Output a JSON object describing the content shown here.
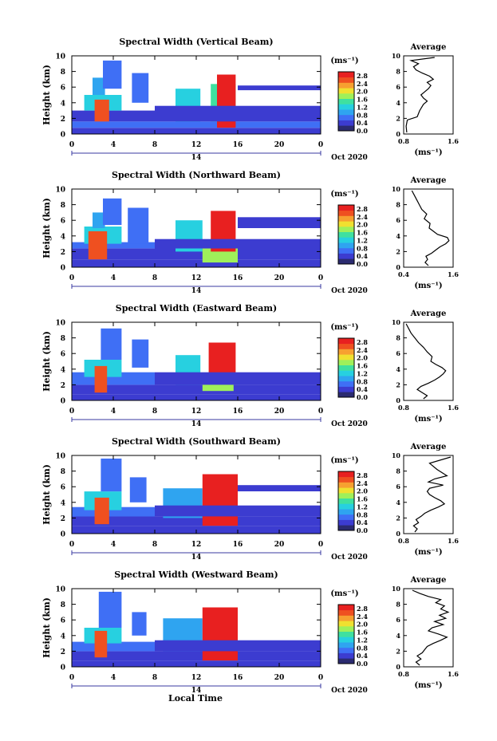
{
  "figure": {
    "xlabel": "Local Time",
    "colorbar_unit": "(ms⁻¹)",
    "colorbar_ticks": [
      "2.8",
      "2.4",
      "2.0",
      "1.6",
      "1.2",
      "0.8",
      "0.4",
      "0.0"
    ],
    "date_label": "Oct 2020",
    "day_label": "14",
    "profile_title": "Average",
    "profile_unit": "(ms⁻¹)",
    "ylabel": "Height (km)",
    "colors": {
      "scale": [
        "#2b2b70",
        "#3c3cd0",
        "#3f6ff5",
        "#2fa4f0",
        "#27d0e0",
        "#3fe0a0",
        "#9ff05a",
        "#f0e030",
        "#f7a030",
        "#ef5020",
        "#e82020"
      ],
      "line": "#000000",
      "background": "#ffffff"
    }
  },
  "chart_data": [
    {
      "type": "heatmap",
      "title": "Spectral Width (Vertical Beam)",
      "x_ticks": [
        "0",
        "4",
        "8",
        "12",
        "16",
        "20",
        "0"
      ],
      "y_ticks": [
        "0",
        "2",
        "4",
        "6",
        "8",
        "10"
      ],
      "xlim": [
        0,
        24
      ],
      "ylim": [
        0,
        10
      ],
      "clim": [
        0.0,
        3.0
      ],
      "profile": {
        "xlim": [
          0.8,
          1.6
        ],
        "x_ticks": [
          "0.8",
          "1.6"
        ],
        "y_ticks": [
          "0",
          "2",
          "4",
          "6",
          "8",
          "10"
        ],
        "height": [
          0.2,
          1.0,
          1.8,
          2.2,
          3.0,
          3.8,
          4.2,
          4.6,
          5.0,
          5.4,
          5.8,
          6.2,
          6.6,
          7.0,
          7.4,
          7.8,
          8.2,
          8.6,
          9.0,
          9.4,
          9.8
        ],
        "width": [
          0.85,
          0.84,
          0.86,
          1.02,
          1.06,
          1.12,
          1.18,
          1.12,
          1.08,
          1.14,
          1.2,
          1.24,
          1.18,
          1.28,
          1.22,
          1.1,
          1.0,
          0.96,
          1.04,
          0.92,
          1.3
        ]
      },
      "cells": [
        {
          "t": [
            0,
            24
          ],
          "h": [
            0.0,
            0.8
          ],
          "v": 0.3
        },
        {
          "t": [
            0,
            24
          ],
          "h": [
            0.8,
            1.6
          ],
          "v": 0.6
        },
        {
          "t": [
            0,
            8
          ],
          "h": [
            1.6,
            3.0
          ],
          "v": 0.5
        },
        {
          "t": [
            1.2,
            4.8
          ],
          "h": [
            3.0,
            5.0
          ],
          "v": 1.2
        },
        {
          "t": [
            2.0,
            3.2
          ],
          "h": [
            5.0,
            7.2
          ],
          "v": 1.0
        },
        {
          "t": [
            3.0,
            4.8
          ],
          "h": [
            5.8,
            9.4
          ],
          "v": 0.8
        },
        {
          "t": [
            2.2,
            3.6
          ],
          "h": [
            1.6,
            4.4
          ],
          "v": 2.7
        },
        {
          "t": [
            5.8,
            7.4
          ],
          "h": [
            4.0,
            7.8
          ],
          "v": 0.8
        },
        {
          "t": [
            10.0,
            12.4
          ],
          "h": [
            1.6,
            5.8
          ],
          "v": 1.1
        },
        {
          "t": [
            13.4,
            15.8
          ],
          "h": [
            1.6,
            6.4
          ],
          "v": 1.6
        },
        {
          "t": [
            14.0,
            15.8
          ],
          "h": [
            0.8,
            7.6
          ],
          "v": 2.9
        },
        {
          "t": [
            8.0,
            24.0
          ],
          "h": [
            1.6,
            3.6
          ],
          "v": 0.4
        },
        {
          "t": [
            16.0,
            24.0
          ],
          "h": [
            5.6,
            6.2
          ],
          "v": 0.4
        }
      ]
    },
    {
      "type": "heatmap",
      "title": "Spectral Width (Northward Beam)",
      "x_ticks": [
        "0",
        "4",
        "8",
        "12",
        "16",
        "20",
        "0"
      ],
      "y_ticks": [
        "0",
        "2",
        "4",
        "6",
        "8",
        "10"
      ],
      "xlim": [
        0,
        24
      ],
      "ylim": [
        0,
        10
      ],
      "clim": [
        0.0,
        3.0
      ],
      "profile": {
        "xlim": [
          0.4,
          1.6
        ],
        "x_ticks": [
          "0.4",
          "1.6"
        ],
        "y_ticks": [
          "0",
          "2",
          "4",
          "6",
          "8",
          "10"
        ],
        "height": [
          0.2,
          0.6,
          1.0,
          1.4,
          1.8,
          2.2,
          2.6,
          3.0,
          3.4,
          3.8,
          4.2,
          4.6,
          5.0,
          5.6,
          6.2,
          6.8,
          7.4,
          8.0,
          8.6,
          9.2,
          9.8
        ],
        "width": [
          1.0,
          0.92,
          0.98,
          0.94,
          1.08,
          1.18,
          1.28,
          1.42,
          1.5,
          1.46,
          1.22,
          1.12,
          1.02,
          1.04,
          0.9,
          0.96,
          0.84,
          0.78,
          0.72,
          0.66,
          0.6
        ]
      },
      "cells": [
        {
          "t": [
            0,
            24
          ],
          "h": [
            0.0,
            1.0
          ],
          "v": 0.5
        },
        {
          "t": [
            0,
            24
          ],
          "h": [
            1.0,
            2.4
          ],
          "v": 0.4
        },
        {
          "t": [
            0,
            8
          ],
          "h": [
            2.4,
            3.2
          ],
          "v": 0.6
        },
        {
          "t": [
            1.2,
            4.8
          ],
          "h": [
            3.0,
            5.2
          ],
          "v": 1.3
        },
        {
          "t": [
            2.0,
            3.2
          ],
          "h": [
            5.0,
            7.0
          ],
          "v": 1.0
        },
        {
          "t": [
            3.0,
            4.8
          ],
          "h": [
            5.4,
            8.8
          ],
          "v": 0.8
        },
        {
          "t": [
            1.6,
            3.4
          ],
          "h": [
            1.0,
            4.6
          ],
          "v": 2.6
        },
        {
          "t": [
            5.4,
            7.4
          ],
          "h": [
            3.0,
            7.6
          ],
          "v": 0.8
        },
        {
          "t": [
            10.0,
            12.6
          ],
          "h": [
            2.0,
            6.0
          ],
          "v": 1.1
        },
        {
          "t": [
            12.6,
            16.0
          ],
          "h": [
            0.6,
            3.2
          ],
          "v": 1.7
        },
        {
          "t": [
            13.4,
            15.8
          ],
          "h": [
            2.0,
            7.2
          ],
          "v": 2.9
        },
        {
          "t": [
            8.0,
            24.0
          ],
          "h": [
            2.4,
            3.6
          ],
          "v": 0.3
        },
        {
          "t": [
            16.0,
            24.0
          ],
          "h": [
            5.0,
            6.4
          ],
          "v": 0.4
        }
      ]
    },
    {
      "type": "heatmap",
      "title": "Spectral Width (Eastward Beam)",
      "x_ticks": [
        "0",
        "4",
        "8",
        "12",
        "16",
        "20",
        "0"
      ],
      "y_ticks": [
        "0",
        "2",
        "4",
        "6",
        "8",
        "10"
      ],
      "xlim": [
        0,
        24
      ],
      "ylim": [
        0,
        10
      ],
      "clim": [
        0.0,
        3.0
      ],
      "profile": {
        "xlim": [
          0.8,
          1.6
        ],
        "x_ticks": [
          "0.8",
          "1.6"
        ],
        "y_ticks": [
          "0",
          "2",
          "4",
          "6",
          "8",
          "10"
        ],
        "height": [
          0.2,
          0.6,
          1.0,
          1.4,
          1.8,
          2.2,
          2.6,
          3.0,
          3.4,
          3.8,
          4.2,
          4.6,
          5.0,
          5.6,
          6.2,
          6.8,
          7.4,
          8.0,
          8.6,
          9.2,
          9.8
        ],
        "width": [
          1.12,
          1.18,
          1.1,
          1.02,
          1.08,
          1.2,
          1.3,
          1.38,
          1.44,
          1.48,
          1.42,
          1.32,
          1.24,
          1.26,
          1.18,
          1.12,
          1.04,
          0.98,
          0.92,
          0.88,
          0.84
        ]
      },
      "cells": [
        {
          "t": [
            0,
            24
          ],
          "h": [
            0.0,
            0.8
          ],
          "v": 0.4
        },
        {
          "t": [
            0,
            24
          ],
          "h": [
            0.8,
            2.0
          ],
          "v": 0.5
        },
        {
          "t": [
            0,
            8
          ],
          "h": [
            2.0,
            3.6
          ],
          "v": 0.6
        },
        {
          "t": [
            1.2,
            4.8
          ],
          "h": [
            3.0,
            5.2
          ],
          "v": 1.2
        },
        {
          "t": [
            2.8,
            4.8
          ],
          "h": [
            5.2,
            9.2
          ],
          "v": 0.8
        },
        {
          "t": [
            2.2,
            3.4
          ],
          "h": [
            1.0,
            4.4
          ],
          "v": 2.6
        },
        {
          "t": [
            5.8,
            7.4
          ],
          "h": [
            4.2,
            7.8
          ],
          "v": 0.8
        },
        {
          "t": [
            10.0,
            12.4
          ],
          "h": [
            2.0,
            5.8
          ],
          "v": 1.1
        },
        {
          "t": [
            12.6,
            15.6
          ],
          "h": [
            1.2,
            3.0
          ],
          "v": 1.8
        },
        {
          "t": [
            13.2,
            15.8
          ],
          "h": [
            3.2,
            7.4
          ],
          "v": 2.9
        },
        {
          "t": [
            8.0,
            24.0
          ],
          "h": [
            2.0,
            3.6
          ],
          "v": 0.3
        }
      ]
    },
    {
      "type": "heatmap",
      "title": "Spectral Width (Southward Beam)",
      "x_ticks": [
        "0",
        "4",
        "8",
        "12",
        "16",
        "20",
        "0"
      ],
      "y_ticks": [
        "0",
        "2",
        "4",
        "6",
        "8",
        "10"
      ],
      "xlim": [
        0,
        24
      ],
      "ylim": [
        0,
        10
      ],
      "clim": [
        0.0,
        3.0
      ],
      "profile": {
        "xlim": [
          0.8,
          1.6
        ],
        "x_ticks": [
          "0.8",
          "1.6"
        ],
        "y_ticks": [
          "0",
          "2",
          "4",
          "6",
          "8",
          "10"
        ],
        "height": [
          0.2,
          0.6,
          1.0,
          1.4,
          1.8,
          2.2,
          2.6,
          3.0,
          3.4,
          3.8,
          4.2,
          4.6,
          5.0,
          5.4,
          5.8,
          6.2,
          6.6,
          7.0,
          7.4,
          8.2,
          9.0,
          9.8
        ],
        "width": [
          0.98,
          1.02,
          0.96,
          1.04,
          1.0,
          1.08,
          1.14,
          1.24,
          1.36,
          1.46,
          1.4,
          1.3,
          1.22,
          1.18,
          1.22,
          1.44,
          1.2,
          1.3,
          1.5,
          1.34,
          1.22,
          1.56
        ]
      },
      "cells": [
        {
          "t": [
            0,
            24
          ],
          "h": [
            0.0,
            1.0
          ],
          "v": 0.4
        },
        {
          "t": [
            0,
            24
          ],
          "h": [
            1.0,
            2.2
          ],
          "v": 0.5
        },
        {
          "t": [
            0,
            8
          ],
          "h": [
            2.2,
            3.4
          ],
          "v": 0.6
        },
        {
          "t": [
            1.2,
            4.8
          ],
          "h": [
            3.0,
            5.4
          ],
          "v": 1.3
        },
        {
          "t": [
            2.8,
            4.8
          ],
          "h": [
            5.4,
            9.6
          ],
          "v": 0.8
        },
        {
          "t": [
            5.6,
            7.2
          ],
          "h": [
            4.0,
            7.2
          ],
          "v": 0.8
        },
        {
          "t": [
            2.2,
            3.6
          ],
          "h": [
            1.2,
            4.6
          ],
          "v": 2.7
        },
        {
          "t": [
            8.8,
            12.6
          ],
          "h": [
            2.0,
            5.8
          ],
          "v": 1.0
        },
        {
          "t": [
            12.6,
            16.0
          ],
          "h": [
            1.0,
            7.6
          ],
          "v": 2.9
        },
        {
          "t": [
            8.0,
            24.0
          ],
          "h": [
            2.2,
            3.6
          ],
          "v": 0.3
        },
        {
          "t": [
            16.0,
            24.0
          ],
          "h": [
            5.4,
            6.2
          ],
          "v": 0.4
        }
      ]
    },
    {
      "type": "heatmap",
      "title": "Spectral Width (Westward Beam)",
      "x_ticks": [
        "0",
        "4",
        "8",
        "12",
        "16",
        "20",
        "0"
      ],
      "y_ticks": [
        "0",
        "2",
        "4",
        "6",
        "8",
        "10"
      ],
      "xlim": [
        0,
        24
      ],
      "ylim": [
        0,
        10
      ],
      "clim": [
        0.0,
        3.0
      ],
      "profile": {
        "xlim": [
          0.8,
          1.6
        ],
        "x_ticks": [
          "0.8",
          "1.6"
        ],
        "y_ticks": [
          "0",
          "2",
          "4",
          "6",
          "8",
          "10"
        ],
        "height": [
          0.2,
          0.6,
          1.0,
          1.4,
          1.8,
          2.2,
          2.6,
          3.0,
          3.4,
          3.8,
          4.2,
          4.6,
          5.0,
          5.4,
          5.8,
          6.2,
          6.6,
          7.0,
          7.4,
          7.8,
          8.2,
          8.6,
          9.0,
          9.4,
          9.8
        ],
        "width": [
          1.06,
          1.0,
          1.08,
          1.02,
          1.1,
          1.14,
          1.18,
          1.28,
          1.4,
          1.5,
          1.36,
          1.2,
          1.26,
          1.44,
          1.3,
          1.48,
          1.38,
          1.52,
          1.4,
          1.46,
          1.32,
          1.4,
          1.2,
          1.06,
          0.94
        ]
      },
      "cells": [
        {
          "t": [
            0,
            24
          ],
          "h": [
            0.0,
            0.8
          ],
          "v": 0.4
        },
        {
          "t": [
            0,
            24
          ],
          "h": [
            0.8,
            2.0
          ],
          "v": 0.5
        },
        {
          "t": [
            0,
            8
          ],
          "h": [
            2.0,
            3.2
          ],
          "v": 0.6
        },
        {
          "t": [
            1.2,
            4.8
          ],
          "h": [
            3.0,
            5.0
          ],
          "v": 1.2
        },
        {
          "t": [
            2.6,
            4.8
          ],
          "h": [
            5.0,
            9.6
          ],
          "v": 0.8
        },
        {
          "t": [
            2.2,
            3.4
          ],
          "h": [
            1.2,
            4.6
          ],
          "v": 2.7
        },
        {
          "t": [
            5.8,
            7.2
          ],
          "h": [
            4.0,
            7.0
          ],
          "v": 0.8
        },
        {
          "t": [
            8.8,
            12.6
          ],
          "h": [
            2.0,
            6.2
          ],
          "v": 1.0
        },
        {
          "t": [
            12.6,
            16.0
          ],
          "h": [
            0.8,
            7.6
          ],
          "v": 2.9
        },
        {
          "t": [
            8.0,
            24.0
          ],
          "h": [
            2.0,
            3.4
          ],
          "v": 0.3
        }
      ]
    }
  ]
}
